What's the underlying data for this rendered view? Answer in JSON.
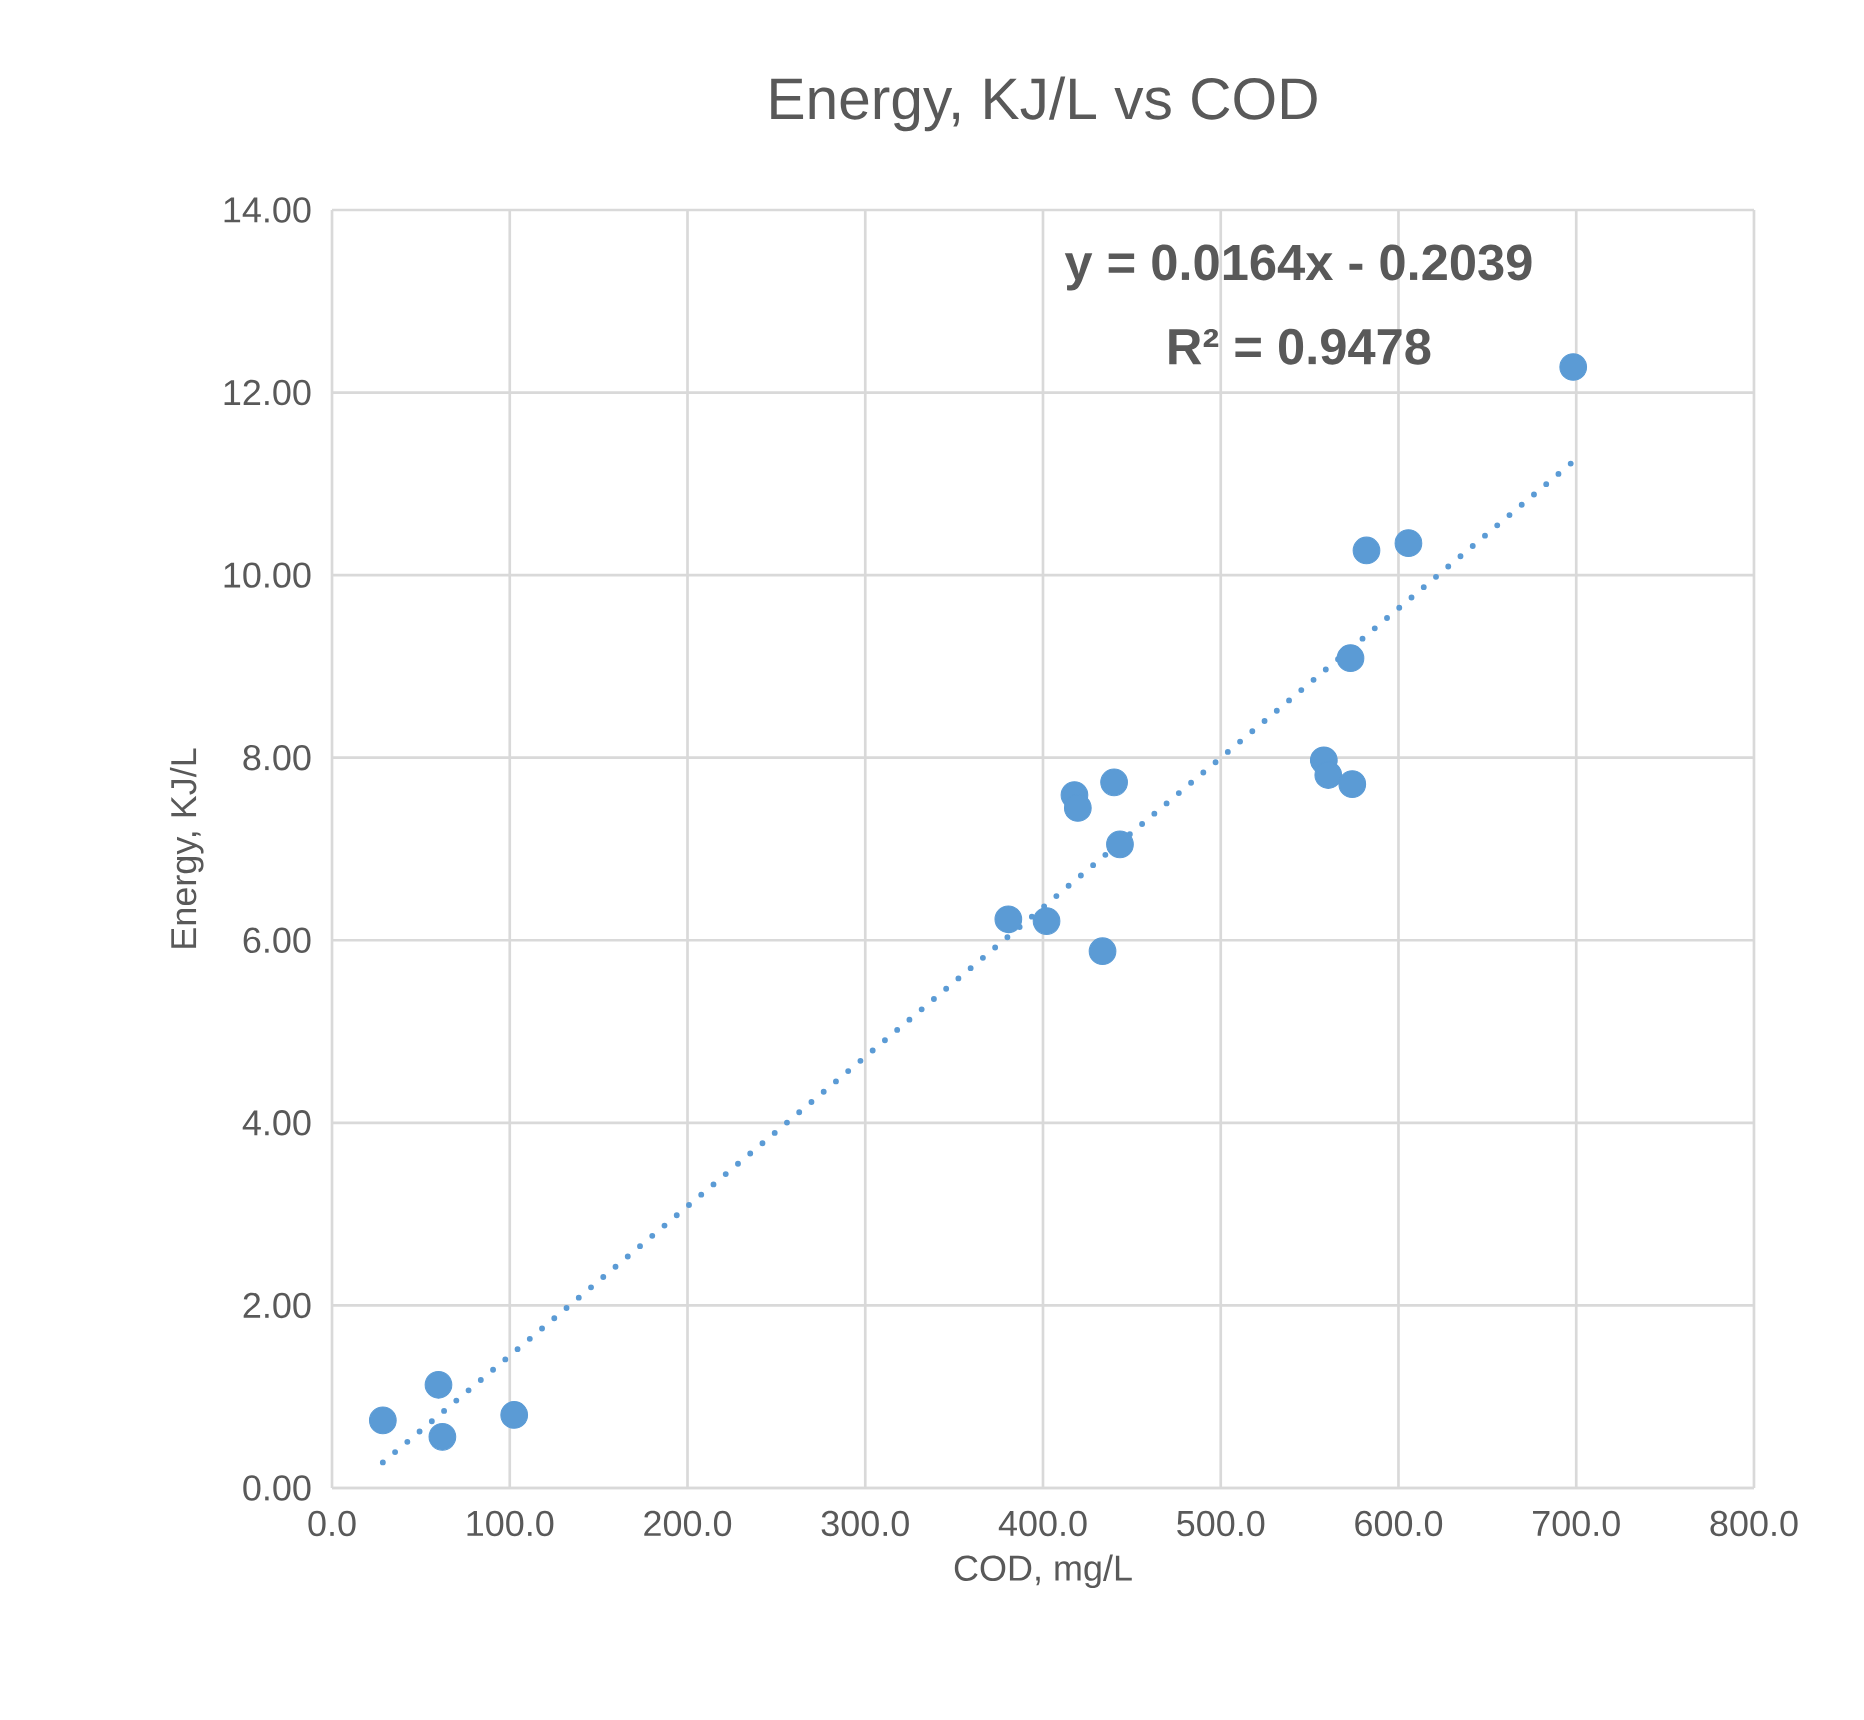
{
  "chart_data": {
    "type": "scatter",
    "title": "Energy, KJ/L vs COD",
    "xlabel": "COD,  mg/L",
    "ylabel": "Energy, KJ/L",
    "annotations": [
      "y = 0.0164x - 0.2039",
      "R² = 0.9478"
    ],
    "xlim": [
      0,
      800
    ],
    "ylim": [
      0,
      14
    ],
    "xticks": [
      {
        "value": 0,
        "label": "0.0"
      },
      {
        "value": 100,
        "label": "100.0"
      },
      {
        "value": 200,
        "label": "200.0"
      },
      {
        "value": 300,
        "label": "300.0"
      },
      {
        "value": 400,
        "label": "400.0"
      },
      {
        "value": 500,
        "label": "500.0"
      },
      {
        "value": 600,
        "label": "600.0"
      },
      {
        "value": 700,
        "label": "700.0"
      },
      {
        "value": 800,
        "label": "800.0"
      }
    ],
    "yticks": [
      {
        "value": 0,
        "label": "0.00"
      },
      {
        "value": 2,
        "label": "2.00"
      },
      {
        "value": 4,
        "label": "4.00"
      },
      {
        "value": 6,
        "label": "6.00"
      },
      {
        "value": 8,
        "label": "8.00"
      },
      {
        "value": 10,
        "label": "10.00"
      },
      {
        "value": 12,
        "label": "12.00"
      },
      {
        "value": 14,
        "label": "14.00"
      }
    ],
    "grid": true,
    "marker": "circle",
    "series": [
      {
        "color": "#5b9bd5",
        "x": [
          28.6,
          59.9,
          62.1,
          102.5,
          380.5,
          402,
          433.5,
          417.7,
          419.6,
          440,
          443.3,
          558,
          560.5,
          574,
          573,
          582,
          605.6,
          698.3
        ],
        "values": [
          0.74,
          1.13,
          0.56,
          0.8,
          6.23,
          6.21,
          5.88,
          7.59,
          7.45,
          7.73,
          7.05,
          7.97,
          7.81,
          7.71,
          9.09,
          10.27,
          10.35,
          12.28
        ]
      },
      {
        "type": "line",
        "color": "#5b9bd5",
        "line_style": "dotted",
        "marker": "none",
        "x": [
          28.6,
          698
        ],
        "values": [
          0.28,
          11.24
        ]
      }
    ]
  }
}
